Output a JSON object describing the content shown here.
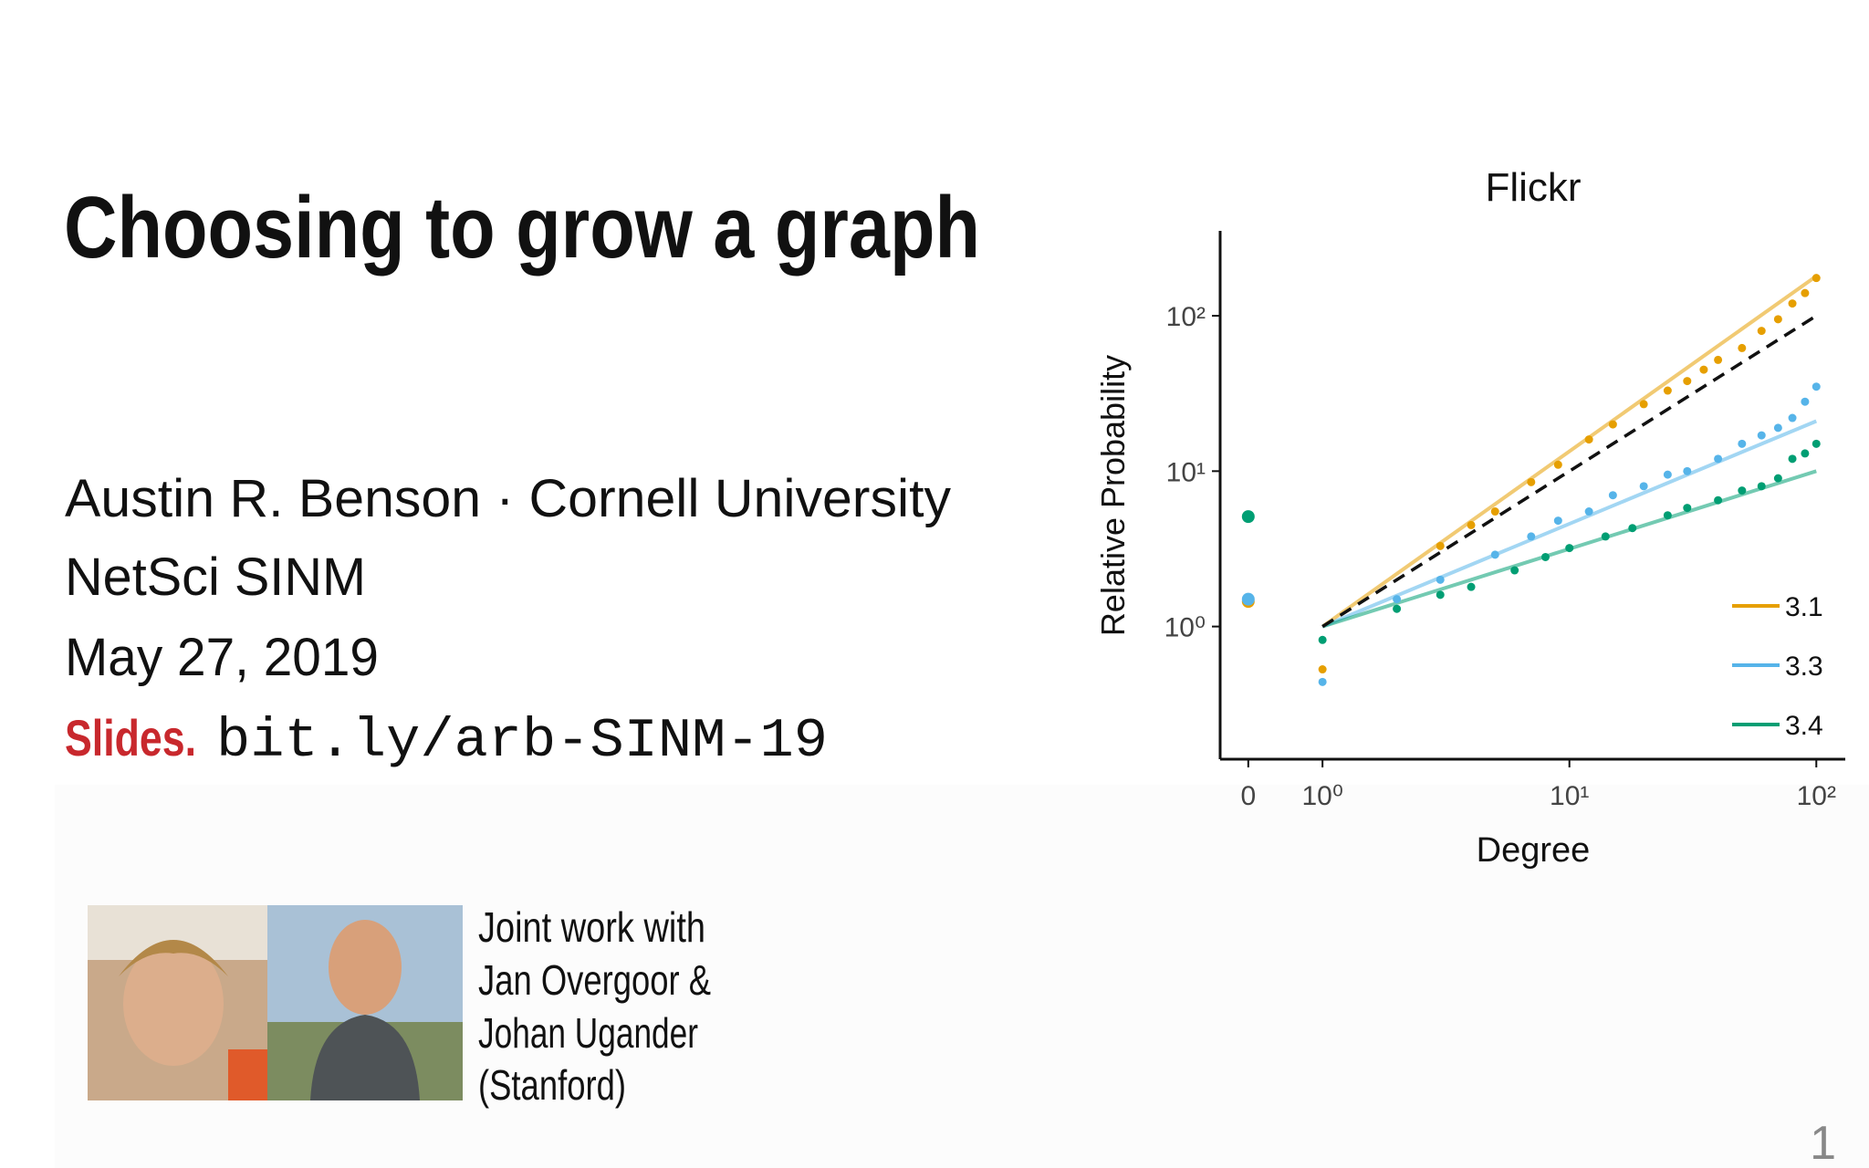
{
  "title": "Choosing to grow a graph",
  "info_lines": [
    "Austin R. Benson · Cornell University",
    "NetSci SINM",
    "May 27, 2019"
  ],
  "slides_label": "Slides.",
  "slides_url": "bit.ly/arb-SINM-19",
  "credit_lines": [
    "Joint work with",
    "Jan Overgoor &",
    "Johan Ugander",
    "(Stanford)"
  ],
  "page_number": "1",
  "chart_data": {
    "type": "scatter",
    "title": "Flickr",
    "x_label": "Degree",
    "y_label": "Relative Probability",
    "x_log": true,
    "y_log": true,
    "xlim": [
      0.385,
      131
    ],
    "ylim": [
      0.14,
      352
    ],
    "xticks": [
      0,
      {
        "value": 1,
        "label": "10⁰"
      },
      {
        "value": 10,
        "label": "10¹"
      },
      {
        "value": 100,
        "label": "10²"
      }
    ],
    "yticks": [
      {
        "value": 1,
        "label": "10⁰"
      },
      {
        "value": 10,
        "label": "10¹"
      },
      {
        "value": 100,
        "label": "10²"
      }
    ],
    "reference": {
      "x": [
        1,
        100
      ],
      "values": [
        1,
        100
      ]
    },
    "legend": "bottom-right",
    "series": [
      {
        "name": "3.1",
        "color": "#e69f00",
        "x": [
          0,
          1,
          3,
          4,
          5,
          7,
          9,
          12,
          15,
          20,
          25,
          30,
          35,
          40,
          50,
          60,
          70,
          80,
          90,
          100
        ],
        "values": [
          1.45,
          0.53,
          3.3,
          4.5,
          5.5,
          8.5,
          11,
          16,
          20,
          27,
          33,
          38,
          45,
          52,
          62,
          80,
          95,
          120,
          140,
          175
        ],
        "fit": {
          "x": [
            1,
            100
          ],
          "values": [
            1,
            180
          ]
        }
      },
      {
        "name": "3.3",
        "color": "#56b4e9",
        "x": [
          0,
          1,
          2,
          3,
          5,
          7,
          9,
          12,
          15,
          20,
          25,
          30,
          40,
          50,
          60,
          70,
          80,
          90,
          100
        ],
        "values": [
          1.5,
          0.44,
          1.5,
          2.0,
          2.9,
          3.8,
          4.8,
          5.5,
          7,
          8,
          9.5,
          10,
          12,
          15,
          17,
          19,
          22,
          28,
          35
        ],
        "fit": {
          "x": [
            1,
            100
          ],
          "values": [
            1,
            21
          ]
        }
      },
      {
        "name": "3.4",
        "color": "#009e73",
        "x": [
          0,
          1,
          2,
          3,
          4,
          6,
          8,
          10,
          14,
          18,
          25,
          30,
          40,
          50,
          60,
          70,
          80,
          90,
          100
        ],
        "values": [
          5.1,
          0.82,
          1.3,
          1.6,
          1.8,
          2.3,
          2.8,
          3.2,
          3.8,
          4.3,
          5.2,
          5.8,
          6.5,
          7.5,
          8,
          9,
          12,
          13,
          15
        ],
        "fit": {
          "x": [
            1,
            100
          ],
          "values": [
            1,
            10
          ]
        }
      }
    ]
  }
}
